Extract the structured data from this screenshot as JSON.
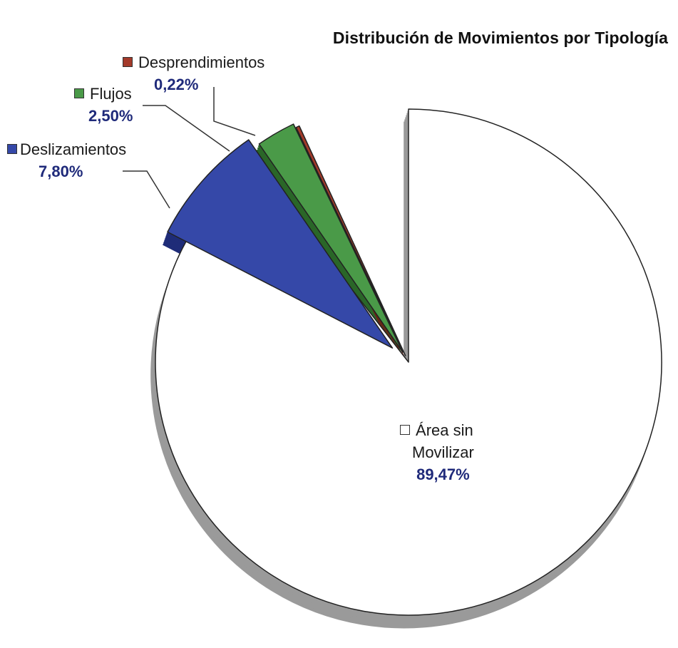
{
  "chart_data": {
    "type": "pie",
    "title": "Distribución de Movimientos por Tipología",
    "slices": [
      {
        "label": "Desprendimientos",
        "percent_label": "0,22%",
        "value": 0.22,
        "color": "#a33a2a",
        "side_color": "#6e1f14"
      },
      {
        "label": "Flujos",
        "percent_label": "2,50%",
        "value": 2.5,
        "color": "#4a9a48",
        "side_color": "#2a6628"
      },
      {
        "label": "Deslizamientos",
        "percent_label": "7,80%",
        "value": 7.8,
        "color": "#3548a8",
        "side_color": "#1f2c78"
      },
      {
        "label_lines": [
          "Área sin",
          "Movilizar"
        ],
        "percent_label": "89,47%",
        "value": 89.47,
        "color": "#ffffff",
        "side_color": "#9a9a9a"
      }
    ],
    "labels_style": "callout with leader lines",
    "exploded_slices": [
      "Desprendimientos",
      "Flujos",
      "Deslizamientos"
    ],
    "three_d": true
  }
}
